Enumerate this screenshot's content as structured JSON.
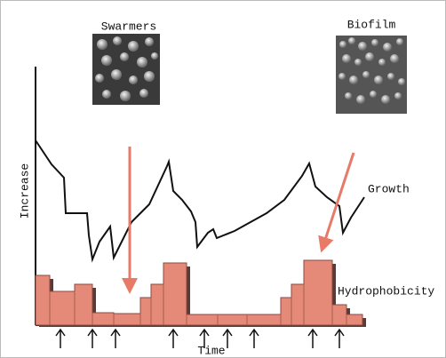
{
  "labels": {
    "swarmers": "Swarmers",
    "biofilm": "Biofilm",
    "y_axis": "Increase",
    "x_axis": "Time",
    "growth": "Growth",
    "hydrophobicity": "Hydrophobicity"
  }
}
